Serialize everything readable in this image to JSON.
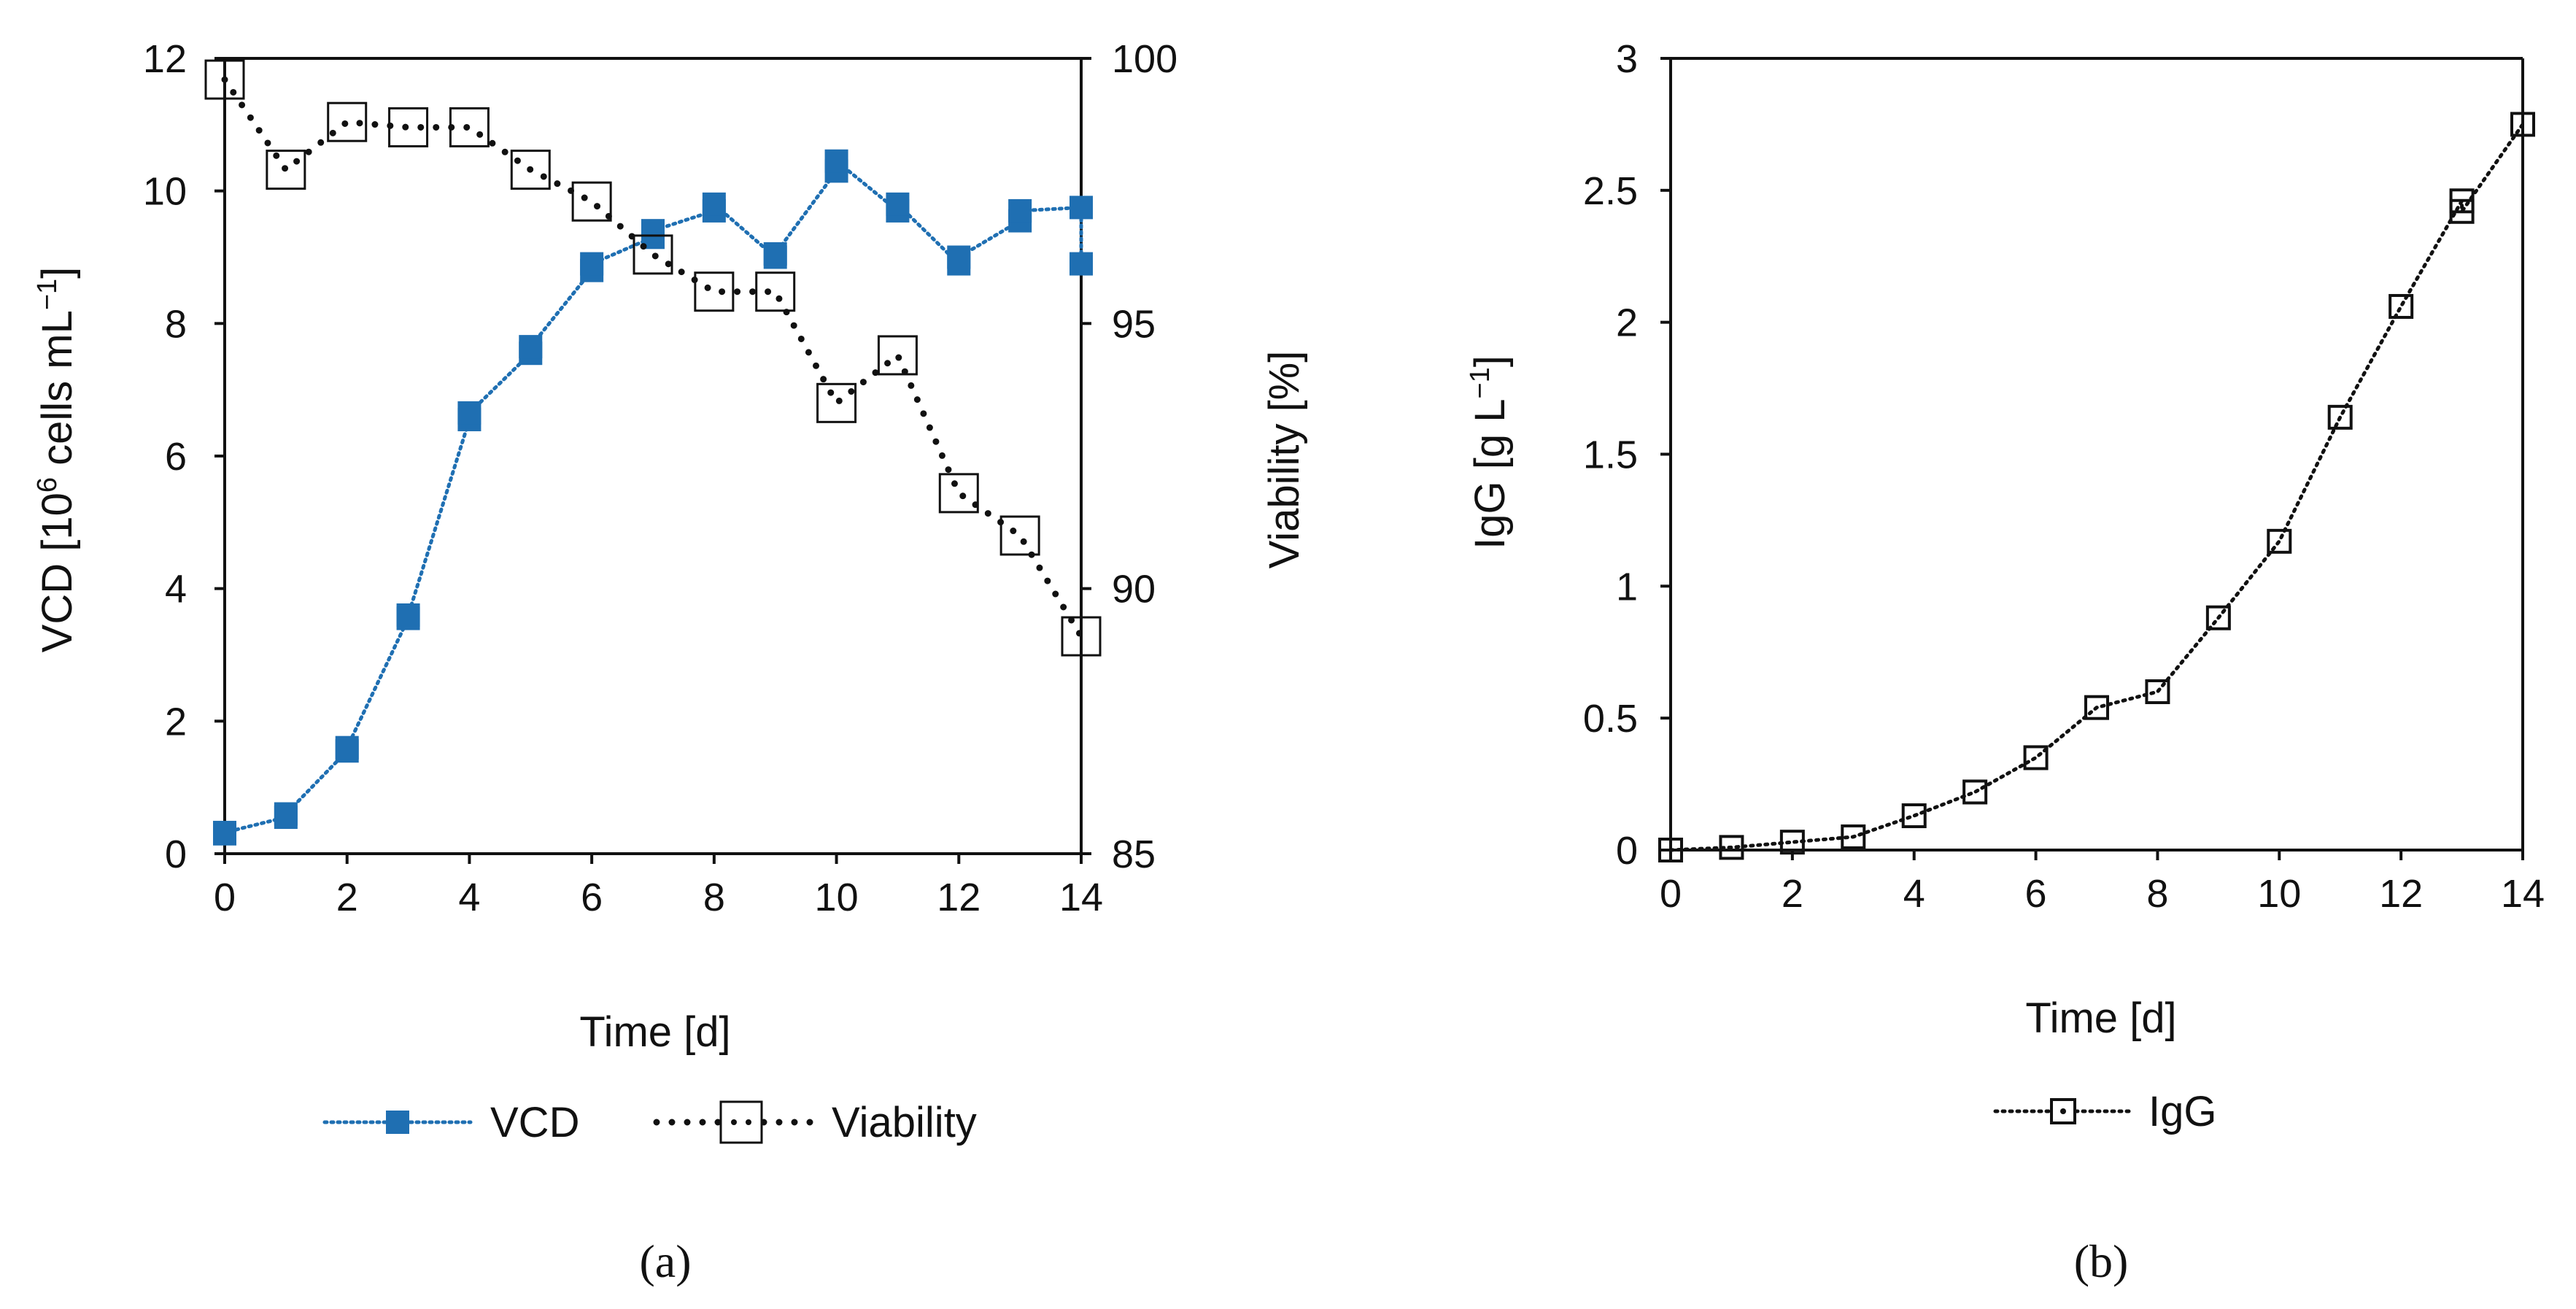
{
  "colors": {
    "vcd": "#1f6fb2",
    "viability": "#111111",
    "igg": "#111111",
    "axis": "#111111"
  },
  "chart_data": [
    {
      "type": "line",
      "panel_label": "(a)",
      "title": "",
      "xlabel": "Time [d]",
      "ylabel_left": "VCD [10",
      "ylabel_left_sup": "6",
      "ylabel_left_mid": " cells mL",
      "ylabel_left_sup2": "−1",
      "ylabel_left_end": "]",
      "ylabel_right": "Viability [%]",
      "xlim": [
        0,
        14
      ],
      "ylim_left": [
        0,
        12
      ],
      "ylim_right": [
        85,
        100
      ],
      "xticks": [
        "0",
        "2",
        "4",
        "6",
        "8",
        "10",
        "12",
        "14"
      ],
      "yticks_left": [
        "0",
        "2",
        "4",
        "6",
        "8",
        "10",
        "12"
      ],
      "yticks_right": [
        "85",
        "90",
        "95",
        "100"
      ],
      "series": [
        {
          "name": "VCD",
          "axis": "left",
          "marker": "filled-square",
          "x": [
            0,
            0,
            1,
            1,
            2,
            2,
            3,
            3,
            4,
            4,
            5,
            5,
            6,
            6,
            7,
            7,
            8,
            8,
            9,
            9,
            10,
            10,
            11,
            11,
            12,
            12,
            13,
            13,
            14,
            14
          ],
          "y": [
            0.3,
            0.32,
            0.55,
            0.6,
            1.55,
            1.6,
            3.55,
            3.6,
            6.55,
            6.65,
            7.55,
            7.65,
            8.8,
            8.9,
            9.3,
            9.4,
            9.7,
            9.8,
            9.0,
            9.05,
            10.3,
            10.45,
            9.7,
            9.8,
            8.9,
            9.0,
            9.55,
            9.7,
            9.75,
            8.9
          ]
        },
        {
          "name": "Viability",
          "axis": "right",
          "marker": "open-square-dotted",
          "x": [
            0,
            1,
            2,
            3,
            4,
            5,
            6,
            7,
            8,
            9,
            10,
            11,
            12,
            13,
            14
          ],
          "y": [
            99.6,
            97.9,
            98.8,
            98.7,
            98.7,
            97.9,
            97.3,
            96.3,
            95.6,
            95.6,
            93.5,
            94.4,
            91.8,
            91.0,
            89.1
          ]
        }
      ],
      "legend": [
        "VCD",
        "Viability"
      ],
      "legend_position": "bottom"
    },
    {
      "type": "line",
      "panel_label": "(b)",
      "title": "",
      "xlabel": "Time [d]",
      "ylabel": "IgG [g L",
      "ylabel_sup": "−1",
      "ylabel_end": "]",
      "xlim": [
        0,
        14
      ],
      "ylim": [
        0,
        3
      ],
      "xticks": [
        "0",
        "2",
        "4",
        "6",
        "8",
        "10",
        "12",
        "14"
      ],
      "yticks": [
        "0",
        "0.5",
        "1",
        "1.5",
        "2",
        "2.5",
        "3"
      ],
      "series": [
        {
          "name": "IgG",
          "marker": "open-square-dotted",
          "x": [
            0,
            1,
            2,
            3,
            4,
            5,
            6,
            7,
            8,
            9,
            10,
            11,
            12,
            13,
            13,
            14
          ],
          "y": [
            0.0,
            0.01,
            0.03,
            0.05,
            0.13,
            0.22,
            0.35,
            0.54,
            0.6,
            0.88,
            1.17,
            1.64,
            2.06,
            2.46,
            2.42,
            2.75
          ]
        }
      ],
      "legend": [
        "IgG"
      ],
      "legend_position": "bottom"
    }
  ]
}
